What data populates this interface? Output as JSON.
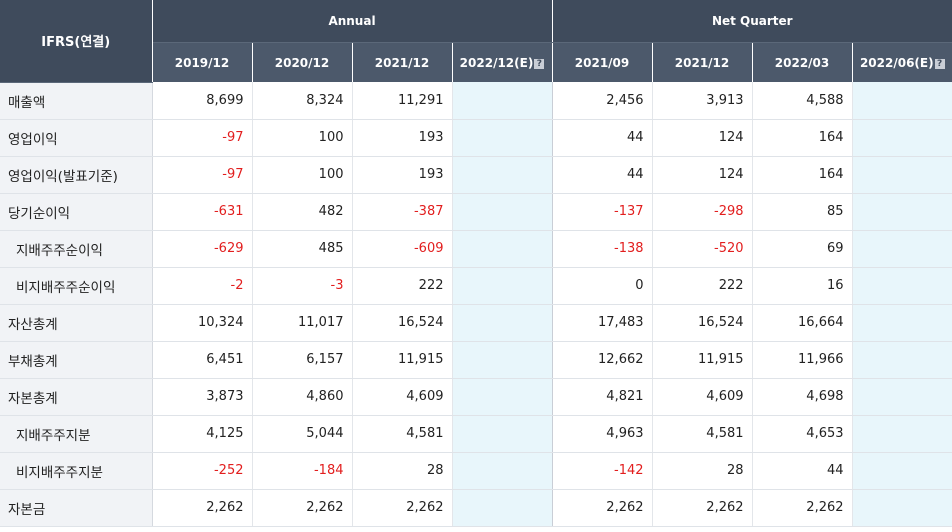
{
  "header": {
    "corner": "IFRS(연결)",
    "annual_label": "Annual",
    "quarter_label": "Net Quarter",
    "annual_periods": [
      "2019/12",
      "2020/12",
      "2021/12",
      "2022/12(E)"
    ],
    "quarter_periods": [
      "2021/09",
      "2021/12",
      "2022/03",
      "2022/06(E)"
    ],
    "help_glyph": "?"
  },
  "rows": [
    {
      "label": "매출액",
      "sub": false,
      "annual": [
        "8,699",
        "8,324",
        "11,291",
        ""
      ],
      "quarter": [
        "2,456",
        "3,913",
        "4,588",
        ""
      ]
    },
    {
      "label": "영업이익",
      "sub": false,
      "annual": [
        "-97",
        "100",
        "193",
        ""
      ],
      "quarter": [
        "44",
        "124",
        "164",
        ""
      ]
    },
    {
      "label": "영업이익(발표기준)",
      "sub": false,
      "annual": [
        "-97",
        "100",
        "193",
        ""
      ],
      "quarter": [
        "44",
        "124",
        "164",
        ""
      ]
    },
    {
      "label": "당기순이익",
      "sub": false,
      "annual": [
        "-631",
        "482",
        "-387",
        ""
      ],
      "quarter": [
        "-137",
        "-298",
        "85",
        ""
      ]
    },
    {
      "label": "지배주주순이익",
      "sub": true,
      "annual": [
        "-629",
        "485",
        "-609",
        ""
      ],
      "quarter": [
        "-138",
        "-520",
        "69",
        ""
      ]
    },
    {
      "label": "비지배주주순이익",
      "sub": true,
      "annual": [
        "-2",
        "-3",
        "222",
        ""
      ],
      "quarter": [
        "0",
        "222",
        "16",
        ""
      ]
    },
    {
      "label": "자산총계",
      "sub": false,
      "annual": [
        "10,324",
        "11,017",
        "16,524",
        ""
      ],
      "quarter": [
        "17,483",
        "16,524",
        "16,664",
        ""
      ]
    },
    {
      "label": "부채총계",
      "sub": false,
      "annual": [
        "6,451",
        "6,157",
        "11,915",
        ""
      ],
      "quarter": [
        "12,662",
        "11,915",
        "11,966",
        ""
      ]
    },
    {
      "label": "자본총계",
      "sub": false,
      "annual": [
        "3,873",
        "4,860",
        "4,609",
        ""
      ],
      "quarter": [
        "4,821",
        "4,609",
        "4,698",
        ""
      ]
    },
    {
      "label": "지배주주지분",
      "sub": true,
      "annual": [
        "4,125",
        "5,044",
        "4,581",
        ""
      ],
      "quarter": [
        "4,963",
        "4,581",
        "4,653",
        ""
      ]
    },
    {
      "label": "비지배주주지분",
      "sub": true,
      "annual": [
        "-252",
        "-184",
        "28",
        ""
      ],
      "quarter": [
        "-142",
        "28",
        "44",
        ""
      ]
    },
    {
      "label": "자본금",
      "sub": false,
      "annual": [
        "2,262",
        "2,262",
        "2,262",
        ""
      ],
      "quarter": [
        "2,262",
        "2,262",
        "2,262",
        ""
      ]
    }
  ],
  "colors": {
    "header_bg": "#3f4b5c",
    "negative": "#e21e1e",
    "estimate_bg": "#e8f6fb",
    "label_bg": "#f1f3f6"
  }
}
